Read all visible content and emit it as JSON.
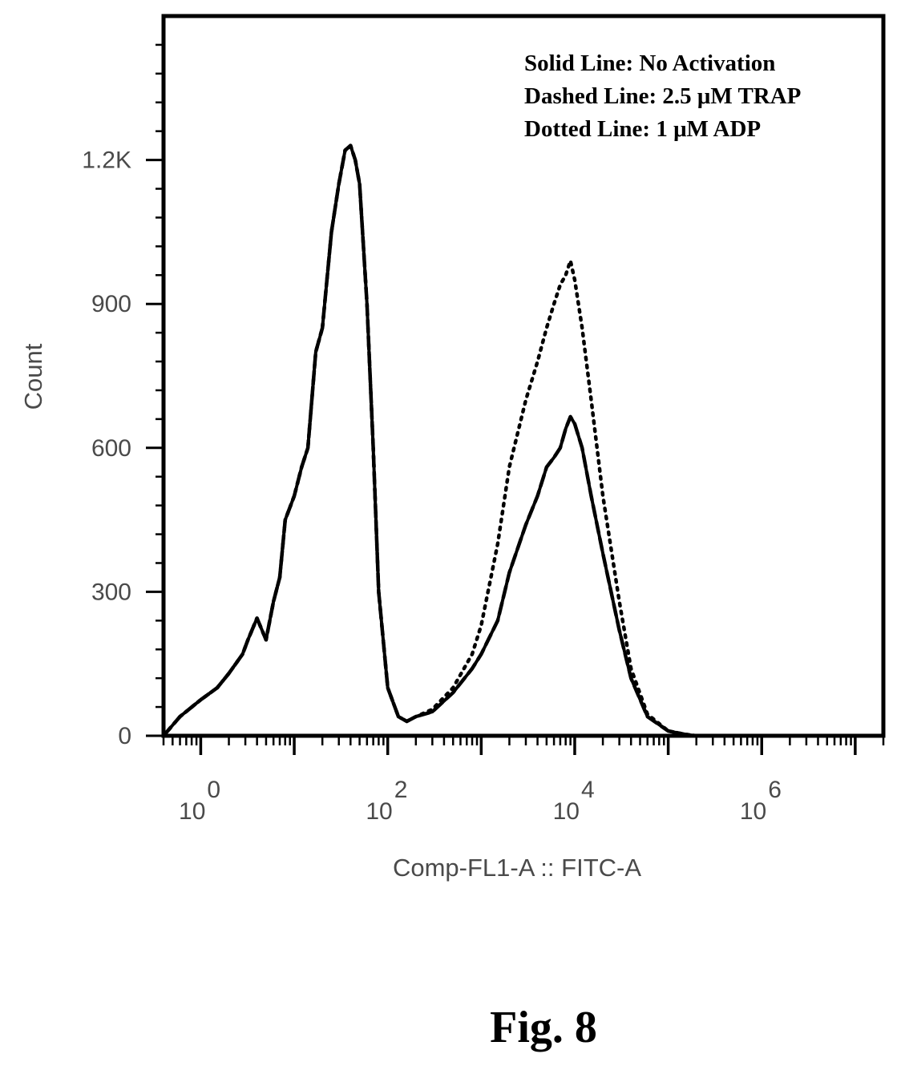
{
  "chart_data": {
    "type": "line",
    "title": "",
    "xlabel": "Comp-FL1-A :: FITC-A",
    "ylabel": "Count",
    "x_scale": "log10",
    "xlim": [
      0.4,
      20000000
    ],
    "ylim": [
      0,
      1500
    ],
    "y_ticks": [
      {
        "value": 0,
        "label": "0"
      },
      {
        "value": 300,
        "label": "300"
      },
      {
        "value": 600,
        "label": "600"
      },
      {
        "value": 900,
        "label": "900"
      },
      {
        "value": 1200,
        "label": "1.2K"
      }
    ],
    "x_ticks": [
      {
        "value": 1,
        "base": "10",
        "exp": "0"
      },
      {
        "value": 100,
        "base": "10",
        "exp": "2"
      },
      {
        "value": 10000,
        "base": "10",
        "exp": "4"
      },
      {
        "value": 1000000,
        "base": "10",
        "exp": "6"
      }
    ],
    "grid": false,
    "legend_position": "top-right",
    "series": [
      {
        "name": "Solid Line: No Activation",
        "style": "solid",
        "x": [
          0.4,
          0.6,
          1,
          1.5,
          2,
          2.8,
          3.2,
          4,
          5,
          6,
          7,
          8,
          10,
          12,
          14,
          17,
          20,
          25,
          30,
          35,
          40,
          45,
          50,
          60,
          70,
          80,
          100,
          130,
          160,
          200,
          300,
          500,
          800,
          1000,
          1500,
          2000,
          3000,
          4000,
          5000,
          6000,
          7000,
          8000,
          9000,
          10000,
          12000,
          15000,
          20000,
          30000,
          40000,
          60000,
          100000,
          150000,
          200000,
          500000,
          1000000,
          10000000,
          20000000
        ],
        "y": [
          0,
          40,
          75,
          100,
          130,
          170,
          200,
          245,
          200,
          280,
          330,
          450,
          500,
          560,
          600,
          800,
          850,
          1050,
          1150,
          1220,
          1230,
          1200,
          1150,
          900,
          600,
          300,
          100,
          40,
          30,
          40,
          50,
          90,
          140,
          170,
          240,
          340,
          440,
          500,
          560,
          580,
          600,
          640,
          665,
          650,
          600,
          500,
          380,
          220,
          120,
          40,
          10,
          3,
          0,
          0,
          0,
          0,
          0
        ]
      },
      {
        "name": "Dashed Line: 2.5 μM TRAP",
        "style": "dashed",
        "x": [
          0.4,
          0.6,
          1,
          1.5,
          2,
          2.8,
          3.2,
          4,
          5,
          6,
          7,
          8,
          10,
          12,
          14,
          17,
          20,
          25,
          30,
          35,
          40,
          45,
          50,
          60,
          70,
          80,
          100,
          130,
          160,
          200,
          300,
          500,
          800,
          1000,
          1500,
          2000,
          3000,
          4000,
          5000,
          6000,
          7000,
          8000,
          9000,
          10000,
          12000,
          15000,
          20000,
          30000,
          40000,
          60000,
          100000,
          150000,
          200000,
          500000,
          1000000,
          10000000,
          20000000
        ],
        "y": [
          0,
          40,
          75,
          100,
          130,
          170,
          200,
          245,
          200,
          280,
          330,
          450,
          500,
          560,
          600,
          800,
          850,
          1050,
          1150,
          1220,
          1230,
          1200,
          1150,
          900,
          600,
          300,
          100,
          40,
          30,
          40,
          50,
          90,
          140,
          170,
          240,
          340,
          440,
          500,
          560,
          580,
          600,
          640,
          665,
          650,
          600,
          500,
          380,
          220,
          120,
          40,
          10,
          3,
          0,
          0,
          0,
          0,
          0
        ]
      },
      {
        "name": "Dotted Line: 1 μM ADP",
        "style": "dotted",
        "x": [
          0.4,
          0.6,
          1,
          1.5,
          2,
          2.8,
          3.2,
          4,
          5,
          6,
          7,
          8,
          10,
          12,
          14,
          17,
          20,
          25,
          30,
          35,
          40,
          45,
          50,
          60,
          70,
          80,
          100,
          130,
          160,
          200,
          300,
          500,
          800,
          1000,
          1500,
          2000,
          3000,
          4000,
          5000,
          6000,
          7000,
          8000,
          9000,
          10000,
          12000,
          15000,
          20000,
          30000,
          40000,
          60000,
          100000,
          150000,
          200000,
          500000,
          1000000,
          10000000,
          20000000
        ],
        "y": [
          0,
          40,
          75,
          100,
          130,
          170,
          200,
          245,
          200,
          280,
          330,
          450,
          500,
          560,
          600,
          800,
          850,
          1050,
          1150,
          1220,
          1230,
          1200,
          1150,
          900,
          600,
          300,
          100,
          40,
          30,
          40,
          55,
          100,
          170,
          230,
          400,
          560,
          700,
          780,
          850,
          900,
          940,
          960,
          990,
          950,
          850,
          700,
          500,
          280,
          140,
          45,
          10,
          3,
          0,
          0,
          0,
          0,
          0
        ]
      }
    ]
  },
  "legend": {
    "line1": "Solid Line: No Activation",
    "line2": "Dashed Line: 2.5 μM TRAP",
    "line3": "Dotted Line: 1 μM ADP"
  },
  "figure_caption": "Fig. 8"
}
